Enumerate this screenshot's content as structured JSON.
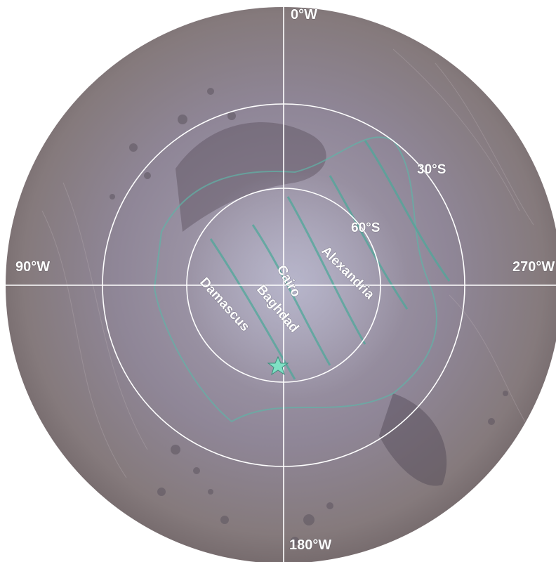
{
  "map": {
    "longitude_labels": {
      "top": "0°W",
      "left": "90°W",
      "right": "270°W",
      "bottom": "180°W"
    },
    "latitude_labels": {
      "outer": "30°S",
      "inner": "60°S"
    },
    "features": [
      {
        "name": "Alexandria"
      },
      {
        "name": "Cairo"
      },
      {
        "name": "Baghdad"
      },
      {
        "name": "Damascus"
      }
    ],
    "marker": {
      "icon": "star-icon",
      "color": "#7fe0c4"
    },
    "colors": {
      "surface": "#8e8494",
      "fractures": "#5fb3a6",
      "grid": "#ffffff"
    }
  }
}
